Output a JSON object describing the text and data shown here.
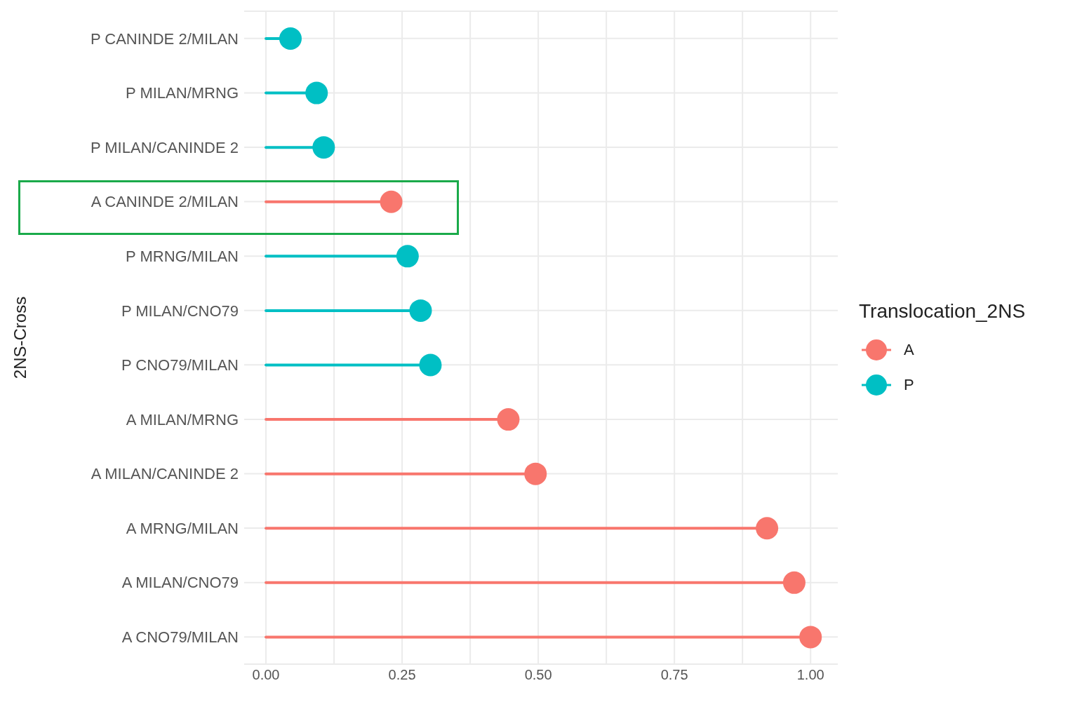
{
  "chart_data": {
    "type": "lollipop",
    "orientation": "horizontal",
    "ylabel": "2NS-Cross",
    "legend_title": "Translocation_2NS",
    "legend": "right",
    "grid": true,
    "marker": "circle",
    "categories": [
      "P  CANINDE 2/MILAN",
      "P  MILAN/MRNG",
      "P  MILAN/CANINDE 2",
      "A  CANINDE 2/MILAN",
      "P  MRNG/MILAN",
      "P  MILAN/CNO79",
      "P  CNO79/MILAN",
      "A  MILAN/MRNG",
      "A  MILAN/CANINDE 2",
      "A  MRNG/MILAN",
      "A  MILAN/CNO79",
      "A  CNO79/MILAN"
    ],
    "xlim": [
      -0.04,
      1.05
    ],
    "xticks": [
      {
        "value": 0,
        "label": "0.00"
      },
      {
        "value": 0.125,
        "label": null
      },
      {
        "value": 0.25,
        "label": "0.25"
      },
      {
        "value": 0.375,
        "label": null
      },
      {
        "value": 0.5,
        "label": "0.50"
      },
      {
        "value": 0.625,
        "label": null
      },
      {
        "value": 0.75,
        "label": "0.75"
      },
      {
        "value": 0.875,
        "label": null
      },
      {
        "value": 1,
        "label": "1.00"
      }
    ],
    "series": [
      {
        "name": "A",
        "color": "#f8766d",
        "values": [
          null,
          null,
          null,
          0.23,
          null,
          null,
          null,
          0.445,
          0.495,
          0.92,
          0.97,
          1.0
        ]
      },
      {
        "name": "P",
        "color": "#00bfc4",
        "values": [
          0.045,
          0.093,
          0.106,
          null,
          0.26,
          0.284,
          0.302,
          null,
          null,
          null,
          null,
          null
        ]
      }
    ]
  }
}
